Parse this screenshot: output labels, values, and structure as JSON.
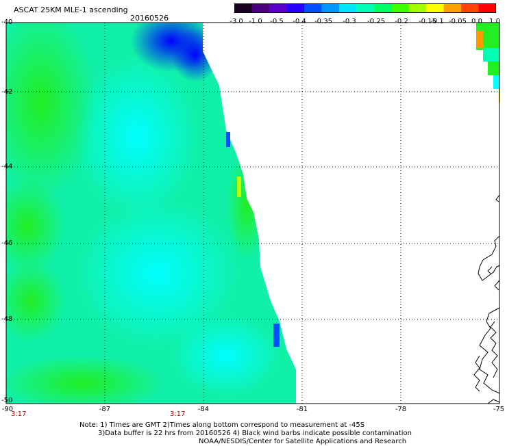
{
  "title": "ASCAT 25KM MLE-1 ascending",
  "date": "20160526",
  "colorbar": {
    "labels": [
      "-3.0",
      "-1.0",
      "-0.5",
      "-0.4",
      "-0.35",
      "-0.3",
      "-0.25",
      "-0.2",
      "-0.15",
      "-0.1",
      "-0.05",
      "0.0",
      "1.0"
    ],
    "colors": [
      "#1a0022",
      "#4b0080",
      "#5a00c8",
      "#2800ff",
      "#0050ff",
      "#0096ff",
      "#00e6ff",
      "#00ffb4",
      "#00ff60",
      "#3cff00",
      "#a0ff00",
      "#ffff00",
      "#ffa000",
      "#ff4400",
      "#ff0000"
    ]
  },
  "axes": {
    "lat_labels": [
      "-40",
      "-42",
      "-44",
      "-46",
      "-48",
      "-50"
    ],
    "lon_labels": [
      "-90",
      "-87",
      "-84",
      "-81",
      "-78",
      "-75"
    ]
  },
  "time_labels": [
    "3:17",
    "3:17"
  ],
  "notes": [
    "Note: 1) Times are GMT 2)Times along bottom correspond to measurement at -45S",
    "3)Data buffer is 22 hrs from 20160526 4) Black wind barbs indicate possible contamination",
    "NOAA/NESDIS/Center for Satellite Applications and Research"
  ],
  "legend_colors": {
    "green": "#22ee22",
    "cyan": "#00ffff",
    "blue": "#0000ff",
    "yellow": "#ffff00",
    "orange": "#ff9900"
  }
}
